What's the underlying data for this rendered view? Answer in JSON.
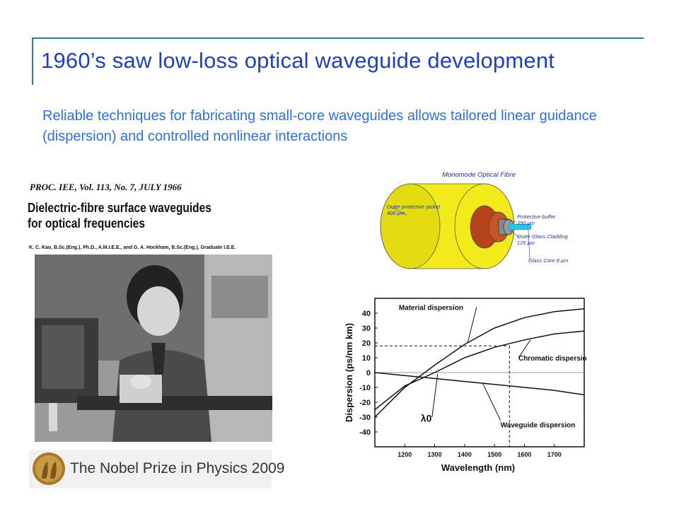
{
  "slide": {
    "title": "1960’s saw low-loss optical waveguide development",
    "subtitle": "Reliable techniques for fabricating small-core waveguides allows tailored linear guidance (dispersion) and controlled nonlinear interactions"
  },
  "paper": {
    "journal": "PROC. IEE, Vol. 113, No. 7, JULY 1966",
    "title": "Dielectric-fibre surface waveguides for optical frequencies",
    "authors": "K. C. Kao, B.Sc.(Eng.), Ph.D., A.M.I.E.E., and G. A. Hockham, B.Sc.(Eng.), Graduate I.E.E."
  },
  "nobel": {
    "text": "The Nobel Prize in Physics 2009"
  },
  "fibre_diagram": {
    "title": "Monomode Optical Fibre",
    "labels": {
      "jacket": "Outer protective jacket",
      "jacket_size": "400 μm",
      "buffer": "Protective buffer",
      "buffer_size": "250 μm",
      "cladding": "Outer Glass Cladding",
      "cladding_size": "125 μm",
      "core": "Glass Core 8 μm"
    },
    "colors": {
      "jacket": "#f2ea1a",
      "buffer": "#b5441c",
      "cladding": "#8a8a8a",
      "core": "#29c6e8"
    }
  },
  "chart_data": {
    "type": "line",
    "xlabel": "Wavelength (nm)",
    "ylabel": "Dispersion (ps/nm km)",
    "xlim": [
      1100,
      1800
    ],
    "ylim": [
      -50,
      50
    ],
    "xticks": [
      "1200",
      "1300",
      "1400",
      "1500",
      "1600",
      "1700"
    ],
    "yticks": [
      "40",
      "30",
      "20",
      "10",
      "0",
      "-10",
      "-20",
      "-30",
      "-40"
    ],
    "annotations": {
      "lambda0": "λ0",
      "lambda0_x": 1310,
      "ref_y": 18,
      "ref_x": 1550
    },
    "series": [
      {
        "name": "Material dispersion",
        "x": [
          1100,
          1200,
          1300,
          1400,
          1500,
          1600,
          1700,
          1800
        ],
        "y": [
          -30,
          -10,
          5,
          19,
          30,
          37,
          41,
          43
        ]
      },
      {
        "name": "Chromatic dispersion",
        "x": [
          1100,
          1200,
          1300,
          1400,
          1500,
          1600,
          1700,
          1800
        ],
        "y": [
          -25,
          -9,
          0,
          10,
          17,
          22,
          26,
          28
        ]
      },
      {
        "name": "Waveguide dispersion",
        "x": [
          1100,
          1200,
          1300,
          1400,
          1500,
          1600,
          1700,
          1800
        ],
        "y": [
          0,
          -2,
          -4,
          -6,
          -8,
          -10,
          -12,
          -15
        ]
      }
    ]
  }
}
